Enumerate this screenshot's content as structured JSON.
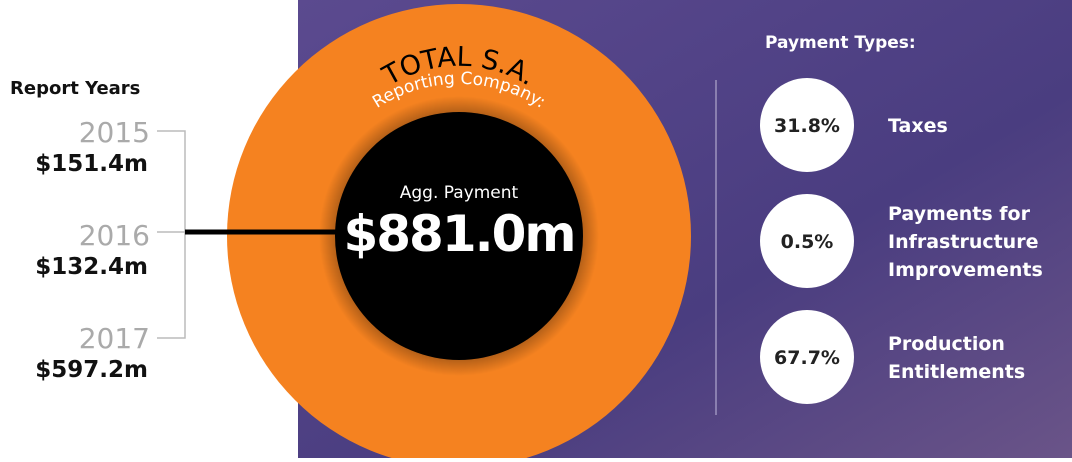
{
  "report_years": {
    "title": "Report Years",
    "years": [
      {
        "year": "2015",
        "amount": "$151.4m"
      },
      {
        "year": "2016",
        "amount": "$132.4m"
      },
      {
        "year": "2017",
        "amount": "$597.2m"
      }
    ]
  },
  "company": {
    "label": "Reporting Company:",
    "name": "TOTAL S.A."
  },
  "aggregate": {
    "label": "Agg. Payment",
    "amount": "$881.0m"
  },
  "payment_types": {
    "title": "Payment Types:",
    "items": [
      {
        "share": "31.8%",
        "lines": [
          "Taxes"
        ]
      },
      {
        "share": "0.5%",
        "lines": [
          "Payments for",
          "Infrastructure",
          "Improvements"
        ]
      },
      {
        "share": "67.7%",
        "lines": [
          "Production",
          "Entitlements"
        ]
      }
    ]
  }
}
